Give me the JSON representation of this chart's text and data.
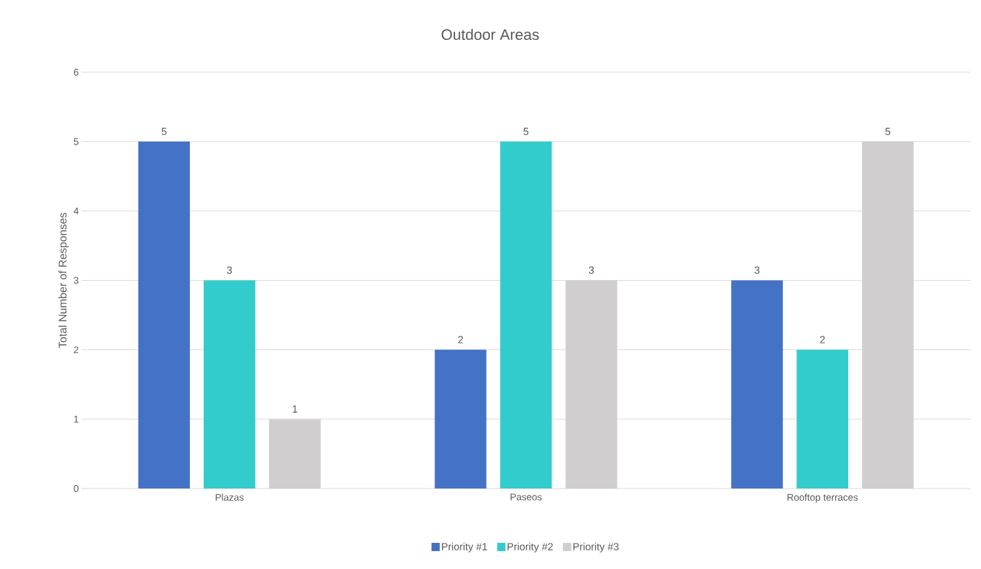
{
  "chart_data": {
    "type": "bar",
    "title": "Outdoor Areas",
    "ylabel": "Total Number of Responses",
    "categories": [
      "Plazas",
      "Paseos",
      "Rooftop terraces"
    ],
    "series": [
      {
        "name": "Priority #1",
        "color": "#4472c4",
        "values": [
          5,
          2,
          3
        ]
      },
      {
        "name": "Priority #2",
        "color": "#33cccc",
        "values": [
          3,
          5,
          2
        ]
      },
      {
        "name": "Priority #3",
        "color": "#d0cece",
        "values": [
          1,
          3,
          5
        ]
      }
    ],
    "ylim": [
      0,
      6
    ],
    "yticks": [
      0,
      1,
      2,
      3,
      4,
      5,
      6
    ],
    "grid": "y",
    "legend": "bottom",
    "data_labels": true
  }
}
